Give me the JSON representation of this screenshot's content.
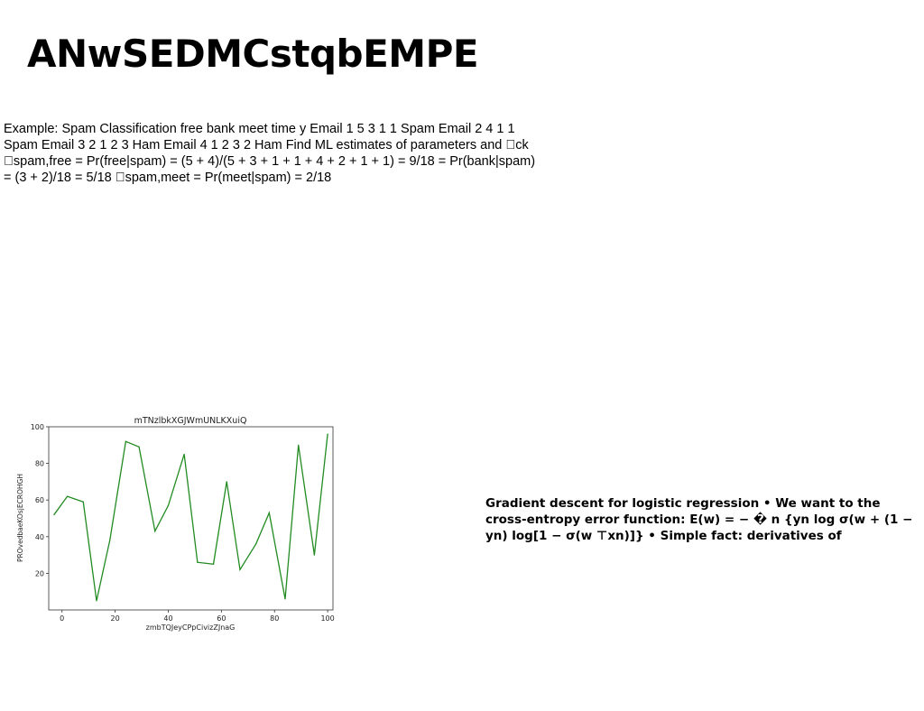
{
  "document": {
    "title": "ANwSEDMCstqbEMPE",
    "paragraph": "Example: Spam Classification free bank meet time y Email 1 5 3 1 1 Spam Email 2 4 1 1 Spam Email 3 2 1 2 3 Ham Email 4 1 2 3 2 Ham Find ML estimates of parameters and \u0000ck \u0000spam,free = Pr(free|spam) = (5 + 4)/(5 + 3 + 1 + 1 + 4 + 2 + 1 + 1) = 9/18 = Pr(bank|spam) = (3 + 2)/18 = 5/18 \u0000spam,meet = Pr(meet|spam) = 2/18",
    "side_paragraph": "Gradient descent for logistic regression • We want to the cross-entropy error function: E(w) = − � n {yn log σ(w + (1 − yn) log[1 − σ(w ⊤xn)]} • Simple fact: derivatives of"
  },
  "chart_data": {
    "type": "line",
    "title": "mTNzlbkXGJWmUNLKXuiQ",
    "xlabel": "zmbTQJeyCPpCivizZJnaG",
    "ylabel": "PROvedbaeKOsjECROHGH",
    "xlim": [
      -5,
      102
    ],
    "ylim": [
      0,
      100
    ],
    "xticks": [
      0,
      20,
      40,
      60,
      80,
      100
    ],
    "yticks": [
      20,
      40,
      60,
      80,
      100
    ],
    "grid": false,
    "color": "#228b22",
    "series": [
      {
        "x": [
          -3,
          2,
          8,
          13,
          18,
          24,
          29,
          35,
          40,
          46,
          51,
          57,
          62,
          67,
          73,
          78,
          84,
          89,
          95,
          100
        ],
        "values": [
          52,
          62,
          59,
          5,
          38,
          92,
          89,
          43,
          57,
          85,
          26,
          25,
          70,
          22,
          36,
          53,
          6,
          90,
          30,
          96
        ]
      }
    ]
  }
}
